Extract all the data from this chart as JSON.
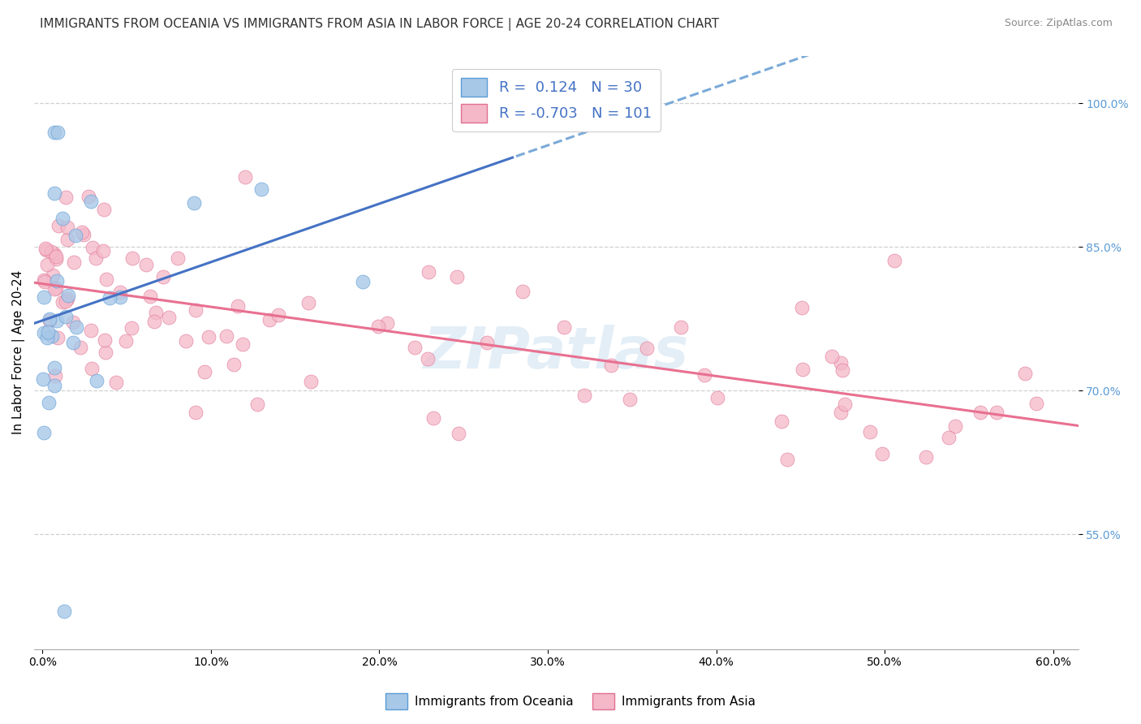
{
  "title": "IMMIGRANTS FROM OCEANIA VS IMMIGRANTS FROM ASIA IN LABOR FORCE | AGE 20-24 CORRELATION CHART",
  "source": "Source: ZipAtlas.com",
  "ylabel": "In Labor Force | Age 20-24",
  "x_tick_vals": [
    0.0,
    0.1,
    0.2,
    0.3,
    0.4,
    0.5,
    0.6
  ],
  "y_tick_vals_right": [
    0.55,
    0.7,
    0.85,
    1.0
  ],
  "xlim": [
    -0.005,
    0.615
  ],
  "ylim": [
    0.43,
    1.05
  ],
  "r_oceania": 0.124,
  "n_oceania": 30,
  "r_asia": -0.703,
  "n_asia": 101,
  "color_oceania_fill": "#a8c8e8",
  "color_oceania_edge": "#5b9bd5",
  "color_asia_fill": "#f4b8c8",
  "color_asia_edge": "#e07090",
  "color_line_oceania_solid": "#4472c4",
  "color_line_oceania_dash": "#7aaad8",
  "color_line_asia": "#e87090",
  "background_color": "#ffffff",
  "grid_color": "#d0d0d0",
  "title_fontsize": 11,
  "axis_label_fontsize": 11,
  "tick_fontsize": 10,
  "line_split_x": 0.28,
  "watermark_text": "ZIPatlas",
  "watermark_color": "#c8dff0",
  "watermark_alpha": 0.5
}
